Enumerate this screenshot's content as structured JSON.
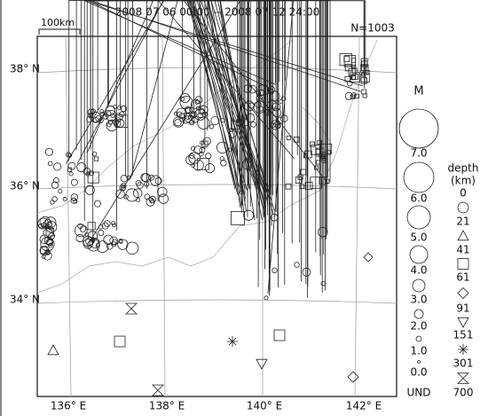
{
  "header": {
    "period": "2008 07 06 00:00 -- 2008 07 12 24:00",
    "scale": "100km",
    "count": "N=1003"
  },
  "map": {
    "lat_labels": [
      "38° N",
      "36° N",
      "34° N"
    ],
    "lon_labels": [
      "136° E",
      "138° E",
      "140° E",
      "142° E"
    ]
  },
  "legend": {
    "magnitude_title": "M",
    "magnitudes": [
      "7.0",
      "6.0",
      "5.0",
      "4.0",
      "3.0",
      "2.0",
      "1.0",
      "0.0",
      "UND"
    ],
    "depth_title": "depth",
    "depth_unit": "(km)",
    "depths": [
      "0",
      "21",
      "41",
      "61",
      "91",
      "151",
      "301",
      "700"
    ]
  }
}
